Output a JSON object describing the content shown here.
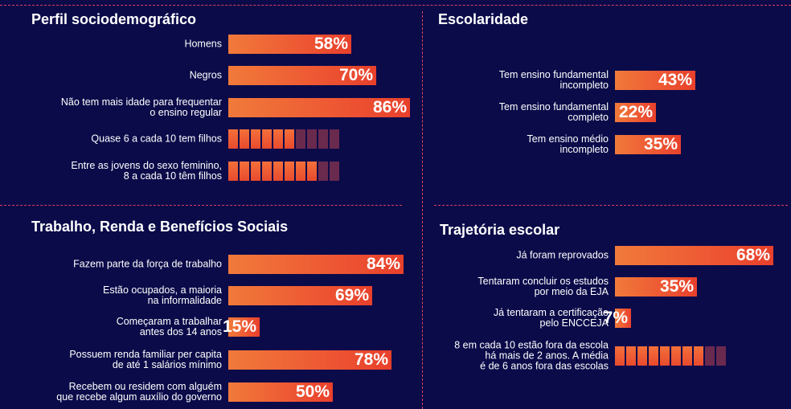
{
  "colors": {
    "background": "#0b0b4a",
    "bar": "#ee5a34",
    "divider": "#e0405a",
    "block_off": "#6a2a4e"
  },
  "panels": {
    "perfil": {
      "title": "Perfil sociodemográfico"
    },
    "escolaridade": {
      "title": "Escolaridade"
    },
    "trabalho": {
      "title": "Trabalho, Renda e Benefícios Sociais"
    },
    "trajetoria": {
      "title": "Trajetória escolar"
    }
  },
  "chart_data": [
    {
      "type": "bar",
      "title": "Perfil sociodemográfico",
      "categories": [
        "Homens",
        "Negros",
        "Não tem mais idade para frequentar\no ensino regular"
      ],
      "values": [
        58,
        70,
        86
      ],
      "value_labels": [
        "58%",
        "70%",
        "86%"
      ],
      "unit": "%",
      "icon_rows": [
        {
          "label": "Quase 6 a cada 10 tem filhos",
          "filled": 6,
          "total": 10
        },
        {
          "label": "Entre as jovens do sexo feminino,\n8 a cada 10 têm filhos",
          "filled": 8,
          "total": 10
        }
      ]
    },
    {
      "type": "bar",
      "title": "Escolaridade",
      "categories": [
        "Tem ensino fundamental\nincompleto",
        "Tem ensino fundamental\ncompleto",
        "Tem ensino médio\nincompleto"
      ],
      "values": [
        43,
        22,
        35
      ],
      "value_labels": [
        "43%",
        "22%",
        "35%"
      ],
      "unit": "%"
    },
    {
      "type": "bar",
      "title": "Trabalho, Renda e Benefícios Sociais",
      "categories": [
        "Fazem parte da força de trabalho",
        "Estão ocupados, a maioria\nna informalidade",
        "Começaram a trabalhar\nantes dos 14 anos",
        "Possuem renda familiar per capita\nde até 1 salários mínimo",
        "Recebem ou residem com alguém\nque recebe algum auxílio do governo"
      ],
      "values": [
        84,
        69,
        15,
        78,
        50
      ],
      "value_labels": [
        "84%",
        "69%",
        "15%",
        "78%",
        "50%"
      ],
      "unit": "%"
    },
    {
      "type": "bar",
      "title": "Trajetória escolar",
      "categories": [
        "Já foram reprovados",
        "Tentaram concluir os estudos\npor meio da EJA",
        "Já tentaram a certificação\npelo ENCCEJA"
      ],
      "values": [
        68,
        35,
        7
      ],
      "value_labels": [
        "68%",
        "35%",
        "7%"
      ],
      "unit": "%",
      "icon_rows": [
        {
          "label": "8 em cada 10 estão fora da escola\nhá mais de 2 anos. A média\né de 6 anos fora das escolas",
          "filled": 8,
          "total": 10
        }
      ]
    }
  ]
}
